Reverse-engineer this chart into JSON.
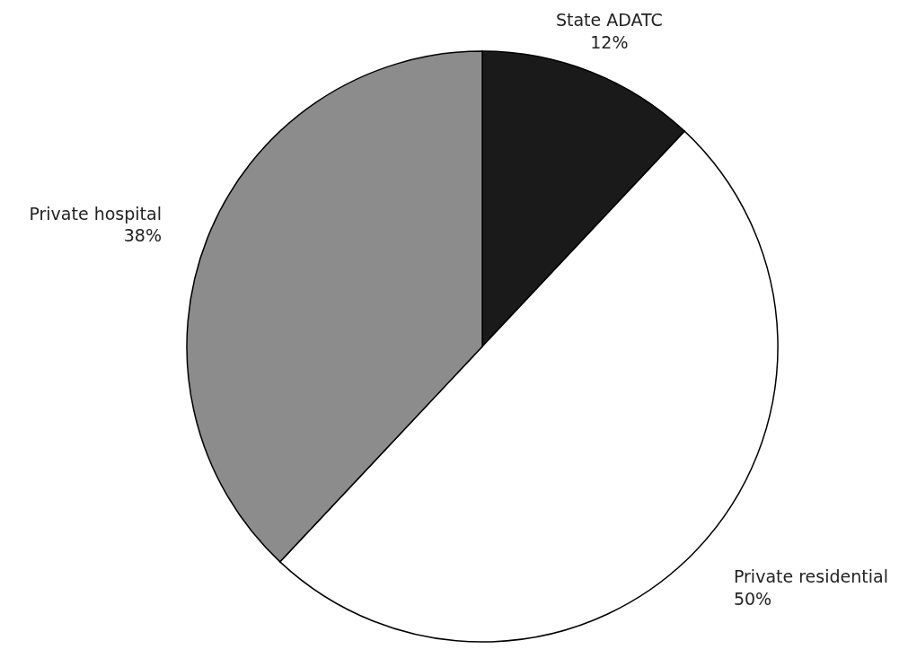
{
  "chart_data": {
    "type": "pie",
    "categories": [
      "State ADATC",
      "Private residential",
      "Private hospital"
    ],
    "values": [
      12,
      50,
      38
    ],
    "colors": [
      "#1a1a1a",
      "#ffffff",
      "#8c8c8c"
    ],
    "value_labels": [
      "12%",
      "50%",
      "38%"
    ]
  }
}
